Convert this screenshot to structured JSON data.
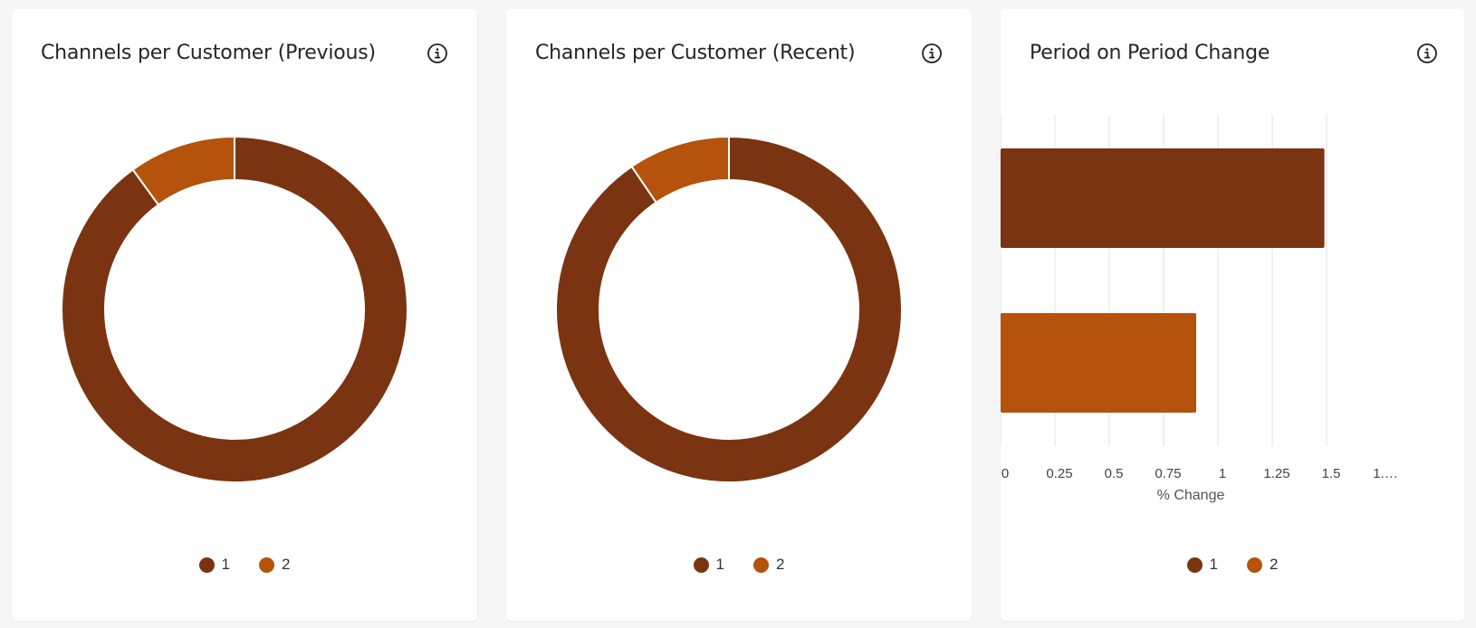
{
  "colors": {
    "series1": "#7a3411",
    "series2": "#b5520b"
  },
  "cards": {
    "previous": {
      "title": "Channels per Customer (Previous)"
    },
    "recent": {
      "title": "Channels per Customer (Recent)"
    },
    "pop": {
      "title": "Period on Period Change"
    }
  },
  "chart_data": [
    {
      "type": "pie",
      "title": "Channels per Customer (Previous)",
      "categories": [
        "1",
        "2"
      ],
      "values": [
        90,
        10
      ],
      "donut": true,
      "legend": "bottom"
    },
    {
      "type": "pie",
      "title": "Channels per Customer (Recent)",
      "categories": [
        "1",
        "2"
      ],
      "values": [
        90.5,
        9.5
      ],
      "donut": true,
      "legend": "bottom"
    },
    {
      "type": "bar",
      "orientation": "horizontal",
      "title": "Period on Period Change",
      "categories": [
        "1",
        "2"
      ],
      "values": [
        1.49,
        0.9
      ],
      "xlabel": "% Change",
      "xlim": [
        0,
        1.75
      ],
      "xticks": [
        "0",
        "0.25",
        "0.5",
        "0.75",
        "1",
        "1.25",
        "1.5",
        "1.…"
      ],
      "grid": true,
      "legend": "bottom"
    }
  ]
}
